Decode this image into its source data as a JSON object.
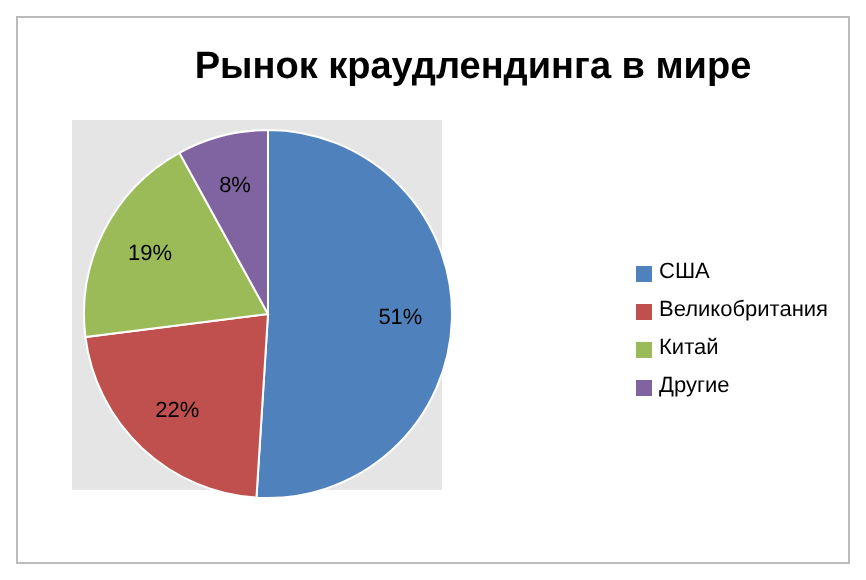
{
  "chart_data": {
    "type": "pie",
    "title": "Рынок краудлендинга в мире",
    "categories": [
      "США",
      "Великобритания",
      "Китай",
      "Другие"
    ],
    "values": [
      51,
      22,
      19,
      8
    ],
    "colors": [
      "#4f81bd",
      "#c0504d",
      "#9bbb59",
      "#8064a2"
    ],
    "value_labels": [
      "51%",
      "22%",
      "19%",
      "8%"
    ],
    "legend": "right"
  }
}
